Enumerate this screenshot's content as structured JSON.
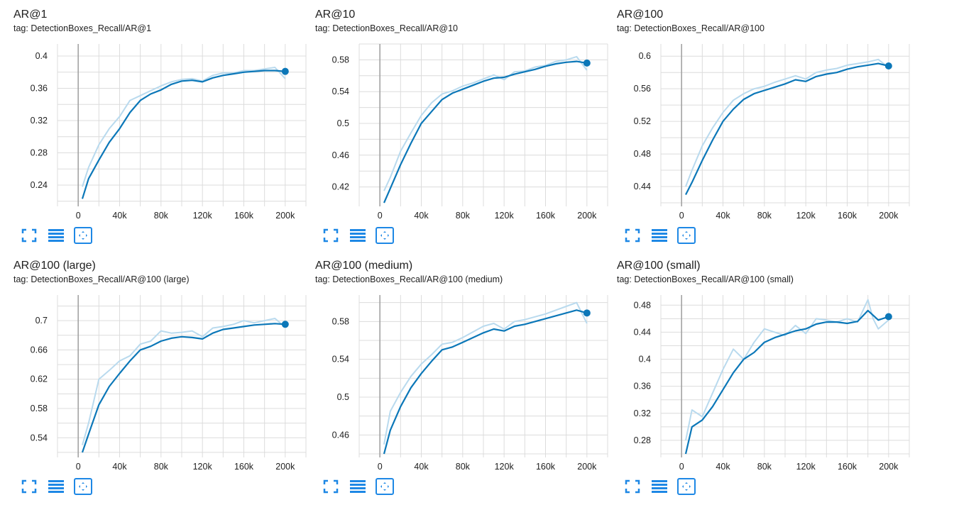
{
  "colors": {
    "smoothed": "#0b77b8",
    "raw": "#b9daee",
    "grid": "#dcdcdc",
    "axis_zero": "#9e9e9e",
    "icon": "#1e88e5"
  },
  "toolbar": {
    "icons": [
      "fullscreen-icon",
      "toggle-log-scale-icon",
      "fit-domain-icon"
    ]
  },
  "charts": [
    {
      "title": "AR@1",
      "tag": "tag: DetectionBoxes_Recall/AR@1"
    },
    {
      "title": "AR@10",
      "tag": "tag: DetectionBoxes_Recall/AR@10"
    },
    {
      "title": "AR@100",
      "tag": "tag: DetectionBoxes_Recall/AR@100"
    },
    {
      "title": "AR@100 (large)",
      "tag": "tag: DetectionBoxes_Recall/AR@100 (large)"
    },
    {
      "title": "AR@100 (medium)",
      "tag": "tag: DetectionBoxes_Recall/AR@100 (medium)"
    },
    {
      "title": "AR@100 (small)",
      "tag": "tag: DetectionBoxes_Recall/AR@100 (small)"
    }
  ],
  "chart_data": [
    {
      "type": "line",
      "title": "AR@1",
      "xlim": [
        -20000,
        220000
      ],
      "ylim": [
        0.218,
        0.415
      ],
      "xticks": [
        0,
        40000,
        80000,
        120000,
        160000,
        200000
      ],
      "xtick_labels": [
        "0",
        "40k",
        "80k",
        "120k",
        "160k",
        "200k"
      ],
      "yticks": [
        0.24,
        0.28,
        0.32,
        0.36,
        0.4
      ],
      "ytick_labels": [
        "0.24",
        "0.28",
        "0.32",
        "0.36",
        "0.4"
      ],
      "grid": true,
      "x": [
        4000,
        10000,
        20000,
        30000,
        40000,
        50000,
        60000,
        70000,
        80000,
        90000,
        100000,
        110000,
        120000,
        130000,
        140000,
        150000,
        160000,
        170000,
        180000,
        190000,
        200000
      ],
      "series": [
        {
          "kind": "smoothed",
          "values": [
            0.223,
            0.248,
            0.271,
            0.293,
            0.31,
            0.33,
            0.345,
            0.353,
            0.358,
            0.365,
            0.369,
            0.37,
            0.368,
            0.373,
            0.376,
            0.378,
            0.38,
            0.381,
            0.382,
            0.382,
            0.381
          ]
        },
        {
          "kind": "raw",
          "values": [
            0.238,
            0.262,
            0.29,
            0.31,
            0.325,
            0.345,
            0.351,
            0.357,
            0.363,
            0.368,
            0.371,
            0.372,
            0.369,
            0.376,
            0.379,
            0.379,
            0.382,
            0.382,
            0.384,
            0.386,
            0.372
          ]
        }
      ]
    },
    {
      "type": "line",
      "title": "AR@10",
      "xlim": [
        -20000,
        220000
      ],
      "ylim": [
        0.4,
        0.6
      ],
      "xticks": [
        0,
        40000,
        80000,
        120000,
        160000,
        200000
      ],
      "xtick_labels": [
        "0",
        "40k",
        "80k",
        "120k",
        "160k",
        "200k"
      ],
      "yticks": [
        0.42,
        0.46,
        0.5,
        0.54,
        0.58
      ],
      "ytick_labels": [
        "0.42",
        "0.46",
        "0.5",
        "0.54",
        "0.58"
      ],
      "grid": true,
      "x": [
        4000,
        10000,
        20000,
        30000,
        40000,
        50000,
        60000,
        70000,
        80000,
        90000,
        100000,
        110000,
        120000,
        130000,
        140000,
        150000,
        160000,
        170000,
        180000,
        190000,
        200000
      ],
      "series": [
        {
          "kind": "smoothed",
          "values": [
            0.4,
            0.418,
            0.448,
            0.475,
            0.5,
            0.515,
            0.53,
            0.538,
            0.543,
            0.548,
            0.553,
            0.557,
            0.558,
            0.562,
            0.565,
            0.568,
            0.572,
            0.575,
            0.577,
            0.578,
            0.576
          ]
        },
        {
          "kind": "raw",
          "values": [
            0.415,
            0.432,
            0.465,
            0.488,
            0.51,
            0.526,
            0.537,
            0.541,
            0.547,
            0.551,
            0.556,
            0.561,
            0.555,
            0.565,
            0.566,
            0.571,
            0.573,
            0.578,
            0.58,
            0.584,
            0.567
          ]
        }
      ]
    },
    {
      "type": "line",
      "title": "AR@100",
      "xlim": [
        -20000,
        220000
      ],
      "ylim": [
        0.42,
        0.615
      ],
      "xticks": [
        0,
        40000,
        80000,
        120000,
        160000,
        200000
      ],
      "xtick_labels": [
        "0",
        "40k",
        "80k",
        "120k",
        "160k",
        "200k"
      ],
      "yticks": [
        0.44,
        0.48,
        0.52,
        0.56,
        0.6
      ],
      "ytick_labels": [
        "0.44",
        "0.48",
        "0.52",
        "0.56",
        "0.6"
      ],
      "grid": true,
      "x": [
        4000,
        10000,
        20000,
        30000,
        40000,
        50000,
        60000,
        70000,
        80000,
        90000,
        100000,
        110000,
        120000,
        130000,
        140000,
        150000,
        160000,
        170000,
        180000,
        190000,
        200000
      ],
      "series": [
        {
          "kind": "smoothed",
          "values": [
            0.43,
            0.445,
            0.472,
            0.497,
            0.52,
            0.535,
            0.547,
            0.554,
            0.558,
            0.562,
            0.566,
            0.571,
            0.569,
            0.575,
            0.578,
            0.58,
            0.584,
            0.587,
            0.589,
            0.591,
            0.588
          ]
        },
        {
          "kind": "raw",
          "values": [
            0.44,
            0.46,
            0.49,
            0.512,
            0.531,
            0.546,
            0.554,
            0.56,
            0.563,
            0.568,
            0.572,
            0.576,
            0.572,
            0.58,
            0.583,
            0.585,
            0.589,
            0.591,
            0.593,
            0.596,
            0.586
          ]
        }
      ]
    },
    {
      "type": "line",
      "title": "AR@100 (large)",
      "xlim": [
        -20000,
        220000
      ],
      "ylim": [
        0.518,
        0.735
      ],
      "xticks": [
        0,
        40000,
        80000,
        120000,
        160000,
        200000
      ],
      "xtick_labels": [
        "0",
        "40k",
        "80k",
        "120k",
        "160k",
        "200k"
      ],
      "yticks": [
        0.54,
        0.58,
        0.62,
        0.66,
        0.7
      ],
      "ytick_labels": [
        "0.54",
        "0.58",
        "0.62",
        "0.66",
        "0.7"
      ],
      "grid": true,
      "x": [
        4000,
        10000,
        20000,
        30000,
        40000,
        50000,
        60000,
        70000,
        80000,
        90000,
        100000,
        110000,
        120000,
        130000,
        140000,
        150000,
        160000,
        170000,
        180000,
        190000,
        200000
      ],
      "series": [
        {
          "kind": "smoothed",
          "values": [
            0.52,
            0.545,
            0.585,
            0.61,
            0.628,
            0.645,
            0.66,
            0.665,
            0.672,
            0.676,
            0.678,
            0.677,
            0.675,
            0.683,
            0.688,
            0.69,
            0.692,
            0.694,
            0.695,
            0.696,
            0.695
          ]
        },
        {
          "kind": "raw",
          "values": [
            0.53,
            0.56,
            0.62,
            0.632,
            0.645,
            0.652,
            0.668,
            0.672,
            0.686,
            0.683,
            0.684,
            0.686,
            0.678,
            0.69,
            0.692,
            0.695,
            0.7,
            0.697,
            0.7,
            0.703,
            0.691
          ]
        }
      ]
    },
    {
      "type": "line",
      "title": "AR@100 (medium)",
      "xlim": [
        -20000,
        220000
      ],
      "ylim": [
        0.44,
        0.608
      ],
      "xticks": [
        0,
        40000,
        80000,
        120000,
        160000,
        200000
      ],
      "xtick_labels": [
        "0",
        "40k",
        "80k",
        "120k",
        "160k",
        "200k"
      ],
      "yticks": [
        0.46,
        0.5,
        0.54,
        0.58
      ],
      "ytick_labels": [
        "0.46",
        "0.5",
        "0.54",
        "0.58"
      ],
      "grid": true,
      "x": [
        4000,
        10000,
        20000,
        30000,
        40000,
        50000,
        60000,
        70000,
        80000,
        90000,
        100000,
        110000,
        120000,
        130000,
        140000,
        150000,
        160000,
        170000,
        180000,
        190000,
        200000
      ],
      "series": [
        {
          "kind": "smoothed",
          "values": [
            0.44,
            0.465,
            0.49,
            0.51,
            0.525,
            0.538,
            0.55,
            0.553,
            0.558,
            0.563,
            0.568,
            0.572,
            0.57,
            0.575,
            0.577,
            0.58,
            0.583,
            0.586,
            0.589,
            0.592,
            0.589
          ]
        },
        {
          "kind": "raw",
          "values": [
            0.45,
            0.485,
            0.505,
            0.522,
            0.535,
            0.545,
            0.556,
            0.558,
            0.563,
            0.569,
            0.575,
            0.578,
            0.572,
            0.58,
            0.582,
            0.585,
            0.588,
            0.592,
            0.596,
            0.6,
            0.578
          ]
        }
      ]
    },
    {
      "type": "line",
      "title": "AR@100 (small)",
      "xlim": [
        -20000,
        220000
      ],
      "ylim": [
        0.26,
        0.495
      ],
      "xticks": [
        0,
        40000,
        80000,
        120000,
        160000,
        200000
      ],
      "xtick_labels": [
        "0",
        "40k",
        "80k",
        "120k",
        "160k",
        "200k"
      ],
      "yticks": [
        0.28,
        0.32,
        0.36,
        0.4,
        0.44,
        0.48
      ],
      "ytick_labels": [
        "0.28",
        "0.32",
        "0.36",
        "0.4",
        "0.44",
        "0.48"
      ],
      "grid": true,
      "x": [
        4000,
        10000,
        20000,
        30000,
        40000,
        50000,
        60000,
        70000,
        80000,
        90000,
        100000,
        110000,
        120000,
        130000,
        140000,
        150000,
        160000,
        170000,
        180000,
        185000,
        190000,
        200000
      ],
      "series": [
        {
          "kind": "smoothed",
          "values": [
            0.26,
            0.3,
            0.31,
            0.33,
            0.355,
            0.38,
            0.4,
            0.41,
            0.425,
            0.432,
            0.437,
            0.442,
            0.445,
            0.452,
            0.455,
            0.455,
            0.453,
            0.456,
            0.472,
            0.465,
            0.458,
            0.463
          ]
        },
        {
          "kind": "raw",
          "values": [
            0.28,
            0.325,
            0.315,
            0.35,
            0.385,
            0.415,
            0.4,
            0.425,
            0.445,
            0.44,
            0.435,
            0.45,
            0.438,
            0.46,
            0.458,
            0.455,
            0.46,
            0.455,
            0.488,
            0.46,
            0.445,
            0.458
          ]
        }
      ]
    }
  ]
}
